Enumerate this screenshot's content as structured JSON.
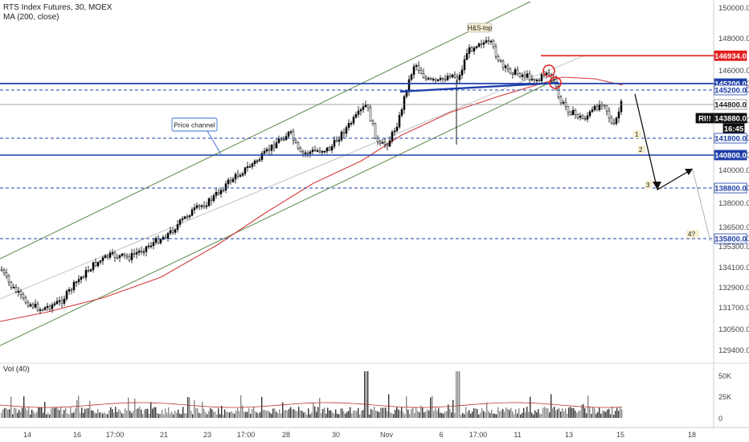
{
  "header": {
    "symbol_line": "RTS Index Futures, 30, MOEX",
    "indicator_line": "MA (200, close)"
  },
  "volume_label": "Vol (40)",
  "colors": {
    "up": "#000000",
    "down": "#ffffff",
    "ma": "#d43a3a",
    "channel": "#5a8a4a",
    "level": "#1f3fa8",
    "resistance": "#e41e1e",
    "bg": "#ffffff"
  },
  "chart_data": {
    "type": "candlestick",
    "title": "RTS Index Futures, 30, MOEX",
    "y_axis": {
      "ticks": [
        "150000.0",
        "148000.0",
        "146000.0",
        "145200.0",
        "144800.0",
        "142000.0",
        "141800.0",
        "140800.0",
        "140000.0",
        "138800.0",
        "138000.0",
        "136500.0",
        "135800.0",
        "135300.0",
        "134100.0",
        "132900.0",
        "131700.0",
        "130500.0",
        "129400.0"
      ],
      "range": [
        129400,
        150000
      ]
    },
    "x_axis": {
      "ticks": [
        "14",
        "16",
        "17:00",
        "21",
        "23",
        "17:00",
        "28",
        "30",
        "Nov",
        "6",
        "17:00",
        "11",
        "13",
        "15",
        "18"
      ]
    },
    "volume_axis": {
      "ticks": [
        "50K",
        "25K",
        "0"
      ]
    },
    "price_labels": [
      {
        "text": "146934.0",
        "kind": "resistance"
      },
      {
        "text": "145200.0",
        "kind": "level"
      },
      {
        "text": "145200.0",
        "kind": "plain"
      },
      {
        "text": "144800.0",
        "kind": "plain"
      },
      {
        "text": "143880.0",
        "kind": "last"
      },
      {
        "text": "RI!!",
        "kind": "symbol"
      },
      {
        "text": "16:45",
        "kind": "time"
      },
      {
        "text": "141800.0",
        "kind": "plain"
      },
      {
        "text": "140800.0",
        "kind": "level"
      },
      {
        "text": "138800.0",
        "kind": "plain"
      },
      {
        "text": "135800.0",
        "kind": "plain"
      }
    ],
    "horizontal_levels": [
      146934.0,
      145200.0,
      144800.0,
      141800.0,
      140800.0,
      138800.0,
      135800.0
    ],
    "annotations": [
      "H&S-top",
      "Price channel",
      "1",
      "2",
      "3",
      "4?"
    ],
    "series": [
      {
        "name": "MA (200, close)",
        "kind": "line"
      },
      {
        "name": "Vol (40)",
        "kind": "volume"
      }
    ]
  }
}
